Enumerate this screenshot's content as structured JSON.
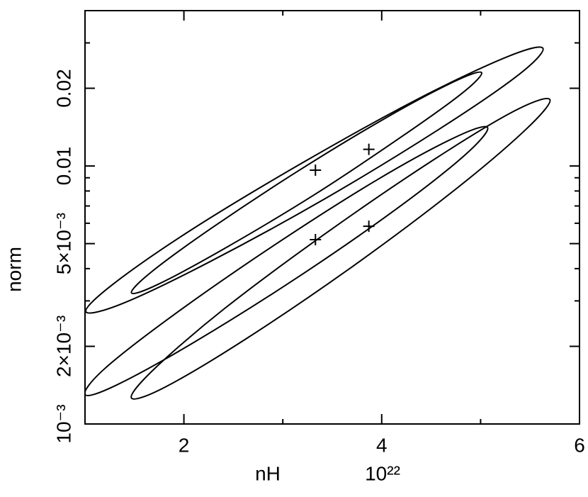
{
  "chart_data": {
    "type": "contour",
    "xlabel": "nH",
    "xunit": "10²²",
    "ylabel": "norm",
    "xlim": [
      1,
      6
    ],
    "ylim": [
      0.001,
      0.04
    ],
    "ylog": true,
    "xticks": [
      2,
      4,
      6
    ],
    "xminor": [
      3,
      5
    ],
    "yticks": [
      {
        "value": 0.001,
        "label": "10⁻³"
      },
      {
        "value": 0.002,
        "label": "2×10⁻³"
      },
      {
        "value": 0.005,
        "label": "5×10⁻³"
      },
      0.01,
      0.02
    ],
    "yminor": [
      0.003,
      0.004,
      0.006,
      0.007,
      0.008,
      0.009,
      0.03
    ],
    "color": "#000000",
    "contours": [
      {
        "x": [
          5.63,
          5.38,
          4.57,
          3.43,
          2.26,
          1.38,
          1.01,
          1.27,
          2.07,
          3.22,
          4.38,
          5.27
        ],
        "y": [
          0.0286,
          0.0225,
          0.0138,
          0.00748,
          0.00425,
          0.00293,
          0.00272,
          0.00345,
          0.00564,
          0.0104,
          0.0183,
          0.0265
        ]
      },
      {
        "x": [
          5.01,
          4.81,
          4.19,
          3.32,
          2.42,
          1.74,
          1.47,
          1.67,
          2.29,
          3.16,
          4.06,
          4.74
        ],
        "y": [
          0.023,
          0.0191,
          0.0129,
          0.00774,
          0.00481,
          0.00348,
          0.00322,
          0.00388,
          0.00578,
          0.00959,
          0.0155,
          0.0213
        ]
      },
      {
        "x": [
          5.07,
          4.85,
          4.15,
          3.14,
          2.1,
          1.31,
          1.0,
          1.2,
          1.91,
          2.92,
          3.95,
          4.74
        ],
        "y": [
          0.0141,
          0.0111,
          0.00682,
          0.00368,
          0.00207,
          0.00141,
          0.0013,
          0.00164,
          0.00267,
          0.00495,
          0.00882,
          0.0129
        ]
      },
      {
        "x": [
          5.7,
          5.47,
          4.75,
          3.71,
          2.63,
          1.81,
          1.47,
          1.69,
          2.41,
          3.46,
          4.53,
          5.35
        ],
        "y": [
          0.0181,
          0.014,
          0.00814,
          0.00409,
          0.00214,
          0.00139,
          0.00126,
          0.00162,
          0.0028,
          0.00557,
          0.0106,
          0.0164
        ]
      }
    ],
    "best_fit": {
      "x": [
        3.33,
        3.87,
        3.33,
        3.87
      ],
      "y": [
        0.00963,
        0.0116,
        0.00518,
        0.00584
      ]
    }
  }
}
